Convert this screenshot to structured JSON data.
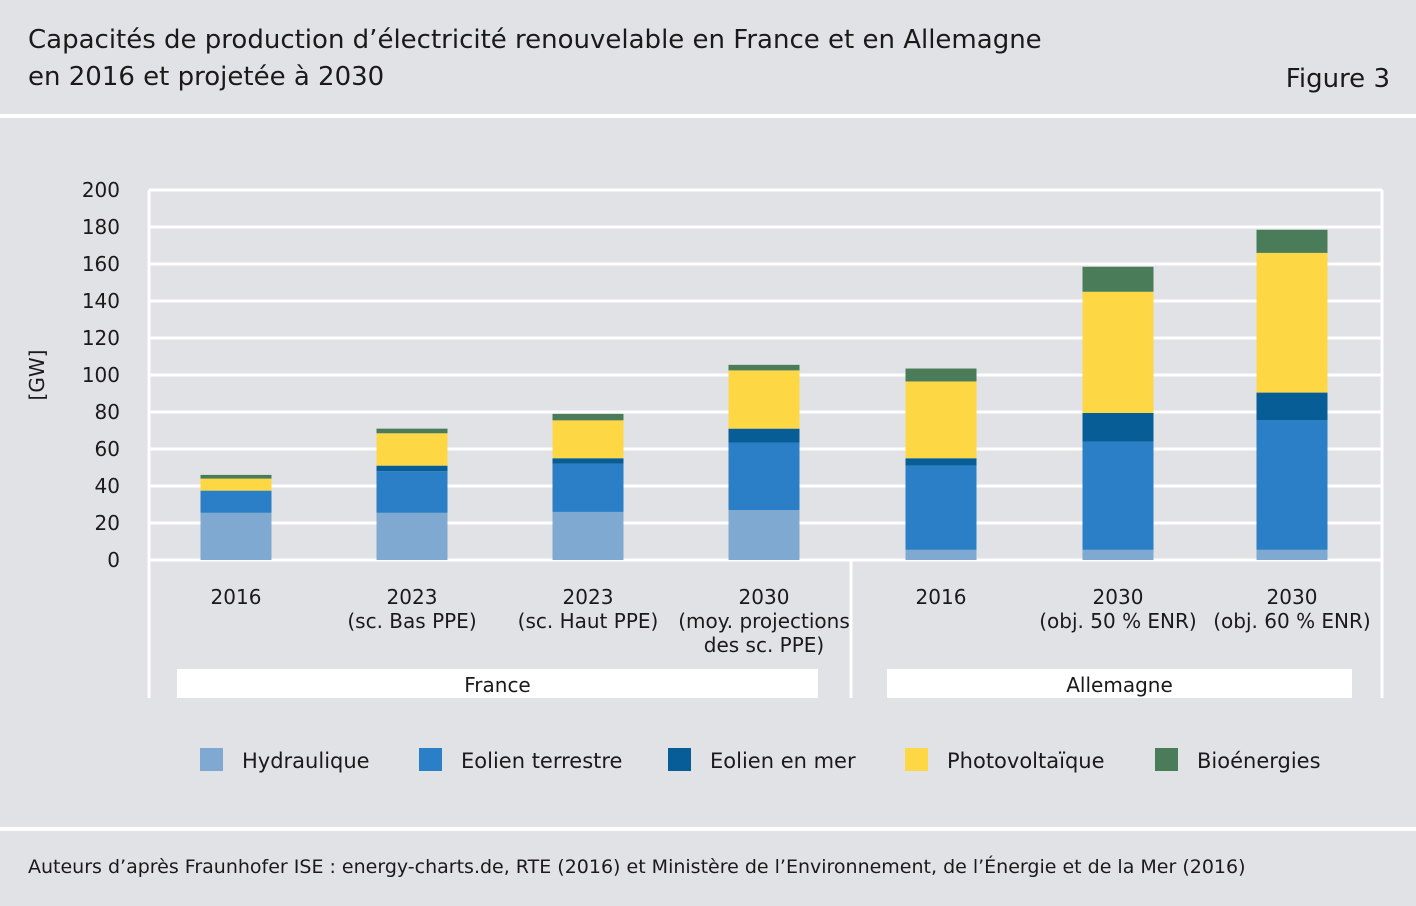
{
  "header": {
    "title_line1": "Capacités de production d’électricité renouvelable en France et en Allemagne",
    "title_line2": "en 2016 et projetée à 2030",
    "figure_label": "Figure 3"
  },
  "footer": {
    "source": "Auteurs d’après Fraunhofer ISE : energy-charts.de, RTE (2016) et Ministère de l’Environnement, de l’Énergie et de la Mer (2016)"
  },
  "colors": {
    "Hydraulique": "#7fa9d1",
    "Eolien terrestre": "#2a7fc6",
    "Eolien en mer": "#075d96",
    "Photovoltaïque": "#fed745",
    "Bioénergies": "#4a7c59"
  },
  "chart_data": {
    "type": "bar",
    "stacked": true,
    "title": "Capacités de production d’électricité renouvelable en France et en Allemagne en 2016 et projetée à 2030",
    "ylabel": "[GW]",
    "xlabel": "",
    "ylim": [
      0,
      200
    ],
    "yticks": [
      0,
      20,
      40,
      60,
      80,
      100,
      120,
      140,
      160,
      180,
      200
    ],
    "grid": true,
    "legend_position": "bottom",
    "categories": [
      [
        "2016"
      ],
      [
        "2023",
        "(sc. Bas PPE)"
      ],
      [
        "2023",
        "(sc. Haut PPE)"
      ],
      [
        "2030",
        "(moy. projections",
        "des sc. PPE)"
      ],
      [
        "2016"
      ],
      [
        "2030",
        "(obj. 50 % ENR)"
      ],
      [
        "2030",
        "(obj. 60 % ENR)"
      ]
    ],
    "groups": [
      {
        "name": "France",
        "categories": [
          0,
          1,
          2,
          3
        ]
      },
      {
        "name": "Allemagne",
        "categories": [
          4,
          5,
          6
        ]
      }
    ],
    "series": [
      {
        "name": "Hydraulique",
        "values": [
          25.5,
          25.5,
          26,
          27,
          5.5,
          5.5,
          5.5
        ]
      },
      {
        "name": "Eolien terrestre",
        "values": [
          12,
          22.5,
          26,
          36.5,
          45.5,
          58.5,
          70
        ]
      },
      {
        "name": "Eolien en mer",
        "values": [
          0,
          3,
          3,
          7.5,
          4,
          15.5,
          15
        ]
      },
      {
        "name": "Photovoltaïque",
        "values": [
          6.5,
          17.5,
          20.5,
          31.5,
          41.5,
          65.5,
          75.5
        ]
      },
      {
        "name": "Bioénergies",
        "values": [
          2,
          2.5,
          3.5,
          3,
          7,
          13.5,
          12.5
        ]
      }
    ]
  }
}
